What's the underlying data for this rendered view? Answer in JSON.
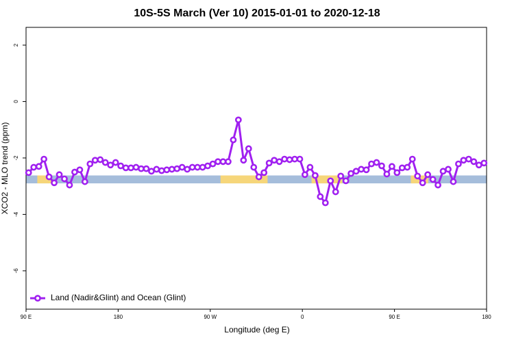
{
  "chart_data": {
    "type": "line",
    "title": "10S-5S March (Ver 10)   2015-01-01 to 2020-12-18",
    "xlabel": "Longitude (deg E)",
    "ylabel": "XCO2 - MLO trend (ppm)",
    "xlim": [
      90,
      540
    ],
    "ylim": [
      -7.36,
      2.63
    ],
    "xticks": [
      {
        "value": 90,
        "label": "90 E"
      },
      180,
      {
        "value": 270,
        "label": "90 W"
      },
      {
        "value": 360,
        "label": "0"
      },
      {
        "value": 450,
        "label": "90 E"
      },
      {
        "value": 540,
        "label": "180"
      }
    ],
    "yticks": [
      2,
      0,
      -2,
      -4,
      -6
    ],
    "legend": "bottom-left",
    "surface_band": {
      "range": [
        -2.62,
        -2.9
      ],
      "ocean_color": "#a5bddb",
      "land_color": "#f6d67a",
      "land": [
        [
          101,
          115
        ],
        [
          280,
          326
        ],
        [
          369,
          399
        ],
        [
          466,
          483
        ]
      ]
    },
    "x": [
      92.5,
      97.5,
      102.5,
      107.5,
      112.5,
      117.5,
      122.5,
      127.5,
      132.5,
      137.5,
      142.5,
      147.5,
      152.5,
      157.5,
      162.5,
      167.5,
      172.5,
      177.5,
      182.5,
      187.5,
      192.5,
      197.5,
      202.5,
      207.5,
      212.5,
      217.5,
      222.5,
      227.5,
      232.5,
      237.5,
      242.5,
      247.5,
      252.5,
      257.5,
      262.5,
      267.5,
      272.5,
      277.5,
      282.5,
      287.5,
      292.5,
      297.5,
      302.5,
      307.5,
      312.5,
      317.5,
      322.5,
      327.5,
      332.5,
      337.5,
      342.5,
      347.5,
      352.5,
      357.5,
      362.5,
      367.5,
      372.5,
      377.5,
      382.5,
      387.5,
      392.5,
      397.5,
      402.5,
      407.5,
      412.5,
      417.5,
      422.5,
      427.5,
      432.5,
      437.5,
      442.5,
      447.5,
      452.5,
      457.5,
      462.5,
      467.5,
      472.5,
      477.5,
      482.5,
      487.5,
      492.5,
      497.5,
      502.5,
      507.5,
      512.5,
      517.5,
      522.5,
      527.5,
      532.5,
      537.5
    ],
    "series": [
      {
        "name": "Land (Nadir&Glint) and Ocean (Glint)",
        "color": "#a020f0",
        "values": [
          -2.52,
          -2.33,
          -2.3,
          -2.04,
          -2.67,
          -2.88,
          -2.59,
          -2.74,
          -2.96,
          -2.5,
          -2.42,
          -2.84,
          -2.21,
          -2.08,
          -2.06,
          -2.16,
          -2.25,
          -2.16,
          -2.28,
          -2.35,
          -2.35,
          -2.33,
          -2.38,
          -2.38,
          -2.47,
          -2.4,
          -2.45,
          -2.42,
          -2.4,
          -2.38,
          -2.33,
          -2.4,
          -2.33,
          -2.33,
          -2.33,
          -2.28,
          -2.21,
          -2.13,
          -2.13,
          -2.13,
          -1.36,
          -0.65,
          -2.08,
          -1.67,
          -2.33,
          -2.67,
          -2.52,
          -2.18,
          -2.08,
          -2.13,
          -2.04,
          -2.06,
          -2.04,
          -2.04,
          -2.59,
          -2.33,
          -2.62,
          -3.37,
          -3.59,
          -2.81,
          -3.2,
          -2.64,
          -2.81,
          -2.55,
          -2.47,
          -2.4,
          -2.42,
          -2.21,
          -2.16,
          -2.28,
          -2.57,
          -2.3,
          -2.52,
          -2.35,
          -2.33,
          -2.04,
          -2.64,
          -2.88,
          -2.59,
          -2.76,
          -2.96,
          -2.47,
          -2.4,
          -2.84,
          -2.21,
          -2.08,
          -2.04,
          -2.13,
          -2.25,
          -2.18
        ]
      }
    ]
  }
}
